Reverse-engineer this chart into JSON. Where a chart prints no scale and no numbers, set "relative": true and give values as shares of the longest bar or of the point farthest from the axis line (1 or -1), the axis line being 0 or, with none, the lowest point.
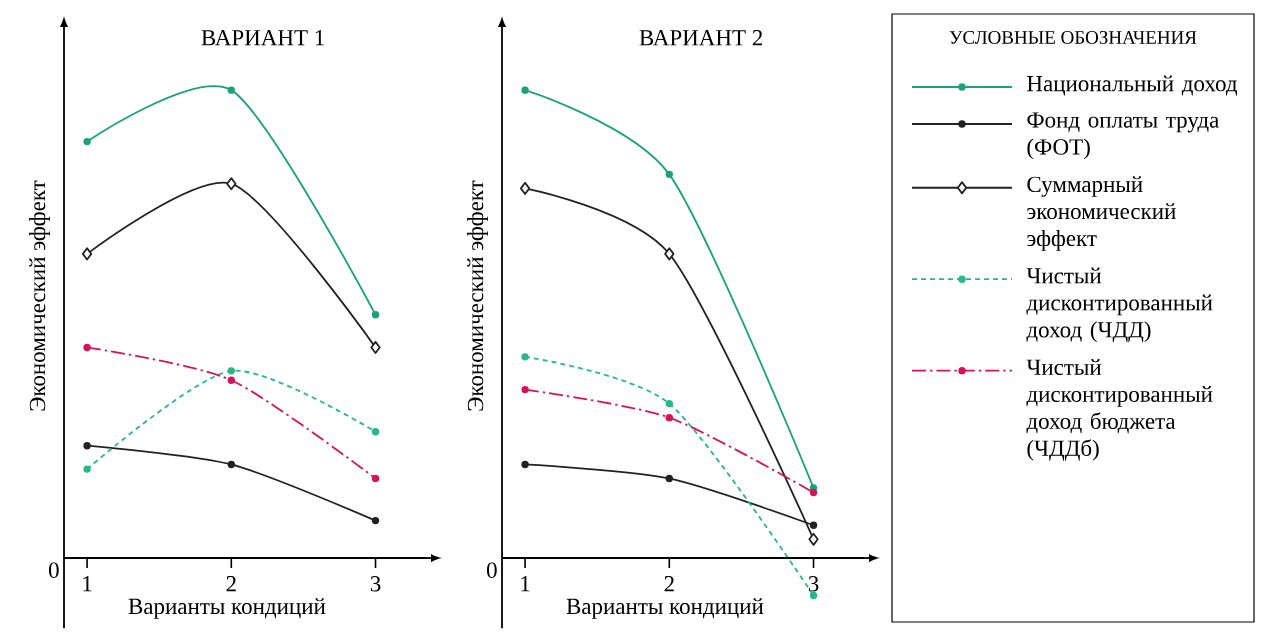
{
  "chart_data": [
    {
      "type": "line",
      "title": "ВАРИАНТ 1",
      "xlabel": "Варианты кондиций",
      "ylabel": "Экономический эффект",
      "relative": true,
      "categories": [
        "1",
        "2",
        "3"
      ],
      "annotations": [
        "0"
      ],
      "series": [
        {
          "color": "#1aa37a",
          "marker": "circle",
          "line_style": "solid",
          "values": [
            0.89,
            1,
            0.52
          ]
        },
        {
          "color": "#222222",
          "marker": "circle",
          "line_style": "solid",
          "values": [
            0.24,
            0.2,
            0.08
          ]
        },
        {
          "color": "#222222",
          "marker": "diamond",
          "line_style": "solid",
          "values": [
            0.65,
            0.8,
            0.45
          ]
        },
        {
          "color": "#2bb58c",
          "marker": "circle",
          "line_style": "dotted",
          "values": [
            0.19,
            0.4,
            0.27
          ]
        },
        {
          "color": "#d4145a",
          "marker": "circle",
          "line_style": "dashdot",
          "values": [
            0.45,
            0.38,
            0.17
          ]
        }
      ]
    },
    {
      "type": "line",
      "title": "ВАРИАНТ 2",
      "xlabel": "Варианты кондиций",
      "ylabel": "Экономический эффект",
      "relative": true,
      "categories": [
        "1",
        "2",
        "3"
      ],
      "annotations": [
        "0"
      ],
      "legend": "right",
      "legend_title": "УСЛОВНЫЕ ОБОЗНАЧЕНИЯ",
      "series": [
        {
          "name": "Национальный доход",
          "color": "#1aa37a",
          "marker": "circle",
          "line_style": "solid",
          "values": [
            1,
            0.82,
            0.15
          ]
        },
        {
          "name": "Фонд оплаты труда (ФОТ)",
          "color": "#222222",
          "marker": "circle",
          "line_style": "solid",
          "values": [
            0.2,
            0.17,
            0.07
          ]
        },
        {
          "name": "Суммарный экономический эффект",
          "color": "#222222",
          "marker": "diamond",
          "line_style": "solid",
          "values": [
            0.79,
            0.65,
            0.04
          ]
        },
        {
          "name": "Чистый дисконтированный доход (ЧДД)",
          "color": "#2bb58c",
          "marker": "circle",
          "line_style": "dotted",
          "values": [
            0.43,
            0.33,
            -0.08
          ]
        },
        {
          "name": "Чистый дисконтированный доход бюджета (ЧДДб)",
          "color": "#d4145a",
          "marker": "circle",
          "line_style": "dashdot",
          "values": [
            0.36,
            0.3,
            0.14
          ]
        }
      ]
    }
  ]
}
